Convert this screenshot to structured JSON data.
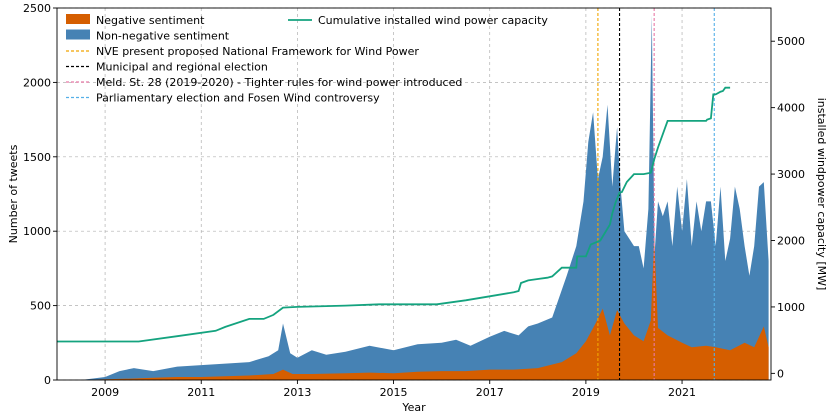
{
  "chart_data": {
    "type": "area",
    "title": "",
    "xlabel": "Year",
    "ylabel": "Number of tweets",
    "y2label": "installed windpower capacity [MW]",
    "xlim": [
      2008.0,
      2022.85
    ],
    "ylim": [
      0,
      2500
    ],
    "y2lim": [
      -100,
      5500
    ],
    "x_ticks": [
      2009,
      2011,
      2013,
      2015,
      2017,
      2019,
      2021
    ],
    "x_tick_labels": [
      "2009",
      "2011",
      "2013",
      "2015",
      "2017",
      "2019",
      "2021"
    ],
    "y_ticks": [
      0,
      500,
      1000,
      1500,
      2000,
      2500
    ],
    "y_tick_labels": [
      "0",
      "500",
      "1000",
      "1500",
      "2000",
      "2500"
    ],
    "y2_ticks": [
      0,
      1000,
      2000,
      3000,
      4000,
      5000
    ],
    "y2_tick_labels": [
      "0",
      "1000",
      "2000",
      "3000",
      "4000",
      "5000"
    ],
    "grid": true,
    "legend_placement": "top-left",
    "series": [
      {
        "name": "Non-negative sentiment",
        "color": "#4682b4",
        "x": [
          2008.0,
          2008.5,
          2009.0,
          2009.3,
          2009.6,
          2010.0,
          2010.5,
          2011.0,
          2011.5,
          2012.0,
          2012.4,
          2012.6,
          2012.7,
          2012.85,
          2013.0,
          2013.3,
          2013.6,
          2014.0,
          2014.5,
          2015.0,
          2015.5,
          2016.0,
          2016.3,
          2016.6,
          2017.0,
          2017.3,
          2017.6,
          2017.8,
          2018.0,
          2018.3,
          2018.6,
          2018.8,
          2018.95,
          2019.05,
          2019.15,
          2019.25,
          2019.35,
          2019.45,
          2019.55,
          2019.65,
          2019.72,
          2019.8,
          2019.9,
          2020.0,
          2020.1,
          2020.2,
          2020.3,
          2020.37,
          2020.43,
          2020.5,
          2020.6,
          2020.7,
          2020.8,
          2020.9,
          2021.0,
          2021.1,
          2021.2,
          2021.3,
          2021.4,
          2021.5,
          2021.6,
          2021.7,
          2021.8,
          2021.9,
          2022.0,
          2022.1,
          2022.2,
          2022.3,
          2022.4,
          2022.5,
          2022.6,
          2022.7,
          2022.8
        ],
        "values": [
          0,
          0,
          20,
          60,
          80,
          60,
          90,
          100,
          110,
          120,
          160,
          200,
          380,
          180,
          150,
          200,
          170,
          190,
          230,
          200,
          240,
          250,
          270,
          230,
          290,
          330,
          300,
          360,
          380,
          420,
          700,
          900,
          1200,
          1600,
          1800,
          1350,
          1500,
          1850,
          1300,
          1700,
          1300,
          1000,
          950,
          900,
          900,
          750,
          1150,
          2450,
          850,
          1200,
          1100,
          1200,
          900,
          1300,
          1000,
          1350,
          900,
          1200,
          1000,
          1200,
          1200,
          900,
          1300,
          800,
          950,
          1300,
          1150,
          900,
          700,
          900,
          1300,
          1330,
          800
        ]
      },
      {
        "name": "Negative sentiment",
        "color": "#d55e00",
        "x": [
          2008.0,
          2008.5,
          2009.0,
          2009.6,
          2010.0,
          2010.5,
          2011.0,
          2011.5,
          2012.0,
          2012.5,
          2012.7,
          2012.9,
          2013.3,
          2014.0,
          2014.5,
          2015.0,
          2015.5,
          2016.0,
          2016.5,
          2017.0,
          2017.5,
          2018.0,
          2018.5,
          2018.8,
          2019.0,
          2019.2,
          2019.35,
          2019.5,
          2019.65,
          2019.8,
          2020.0,
          2020.2,
          2020.35,
          2020.42,
          2020.5,
          2020.7,
          2021.0,
          2021.2,
          2021.5,
          2021.7,
          2022.0,
          2022.3,
          2022.5,
          2022.7,
          2022.8
        ],
        "values": [
          0,
          0,
          5,
          10,
          15,
          20,
          20,
          25,
          30,
          40,
          70,
          40,
          40,
          45,
          50,
          45,
          55,
          60,
          60,
          70,
          70,
          80,
          120,
          180,
          260,
          380,
          480,
          300,
          470,
          380,
          300,
          260,
          400,
          950,
          350,
          300,
          250,
          220,
          230,
          220,
          200,
          250,
          220,
          360,
          220
        ]
      },
      {
        "name": "Cumulative installed wind power capacity",
        "color": "#14a37f",
        "axis": "right",
        "x": [
          2008.0,
          2009.7,
          2010.5,
          2011.3,
          2011.5,
          2012.0,
          2012.3,
          2012.5,
          2012.7,
          2013.0,
          2014.0,
          2014.7,
          2015.9,
          2016.5,
          2017.0,
          2017.5,
          2017.6,
          2017.65,
          2017.8,
          2018.0,
          2018.2,
          2018.3,
          2018.5,
          2018.8,
          2018.82,
          2019.0,
          2019.1,
          2019.3,
          2019.5,
          2019.55,
          2019.62,
          2019.7,
          2019.75,
          2019.85,
          2020.0,
          2020.2,
          2020.35,
          2020.42,
          2020.5,
          2020.6,
          2020.7,
          2021.5,
          2021.52,
          2021.6,
          2021.65,
          2021.7,
          2021.8,
          2021.85,
          2021.9,
          2022.0
        ],
        "values": [
          480,
          480,
          560,
          640,
          700,
          820,
          820,
          880,
          990,
          1000,
          1020,
          1040,
          1040,
          1100,
          1160,
          1220,
          1240,
          1360,
          1400,
          1420,
          1440,
          1460,
          1590,
          1590,
          1760,
          1760,
          1940,
          2000,
          2240,
          2410,
          2580,
          2720,
          2730,
          2880,
          3000,
          3000,
          3020,
          3220,
          3400,
          3600,
          3800,
          3800,
          3820,
          3840,
          4200,
          4200,
          4240,
          4250,
          4300,
          4300
        ]
      }
    ],
    "vlines": [
      {
        "label": "NVE present proposed National Framework for Wind Power",
        "x": 2019.25,
        "color": "#f0a500"
      },
      {
        "label": "Municipal and regional election",
        "x": 2019.7,
        "color": "#000000"
      },
      {
        "label": "Meld. St. 28 (2019-2020) - Tighter rules for wind power introduced",
        "x": 2020.42,
        "color": "#e87aa6"
      },
      {
        "label": "Parliamentary election and Fosen Wind controversy",
        "x": 2021.67,
        "color": "#55b0e8"
      }
    ]
  }
}
